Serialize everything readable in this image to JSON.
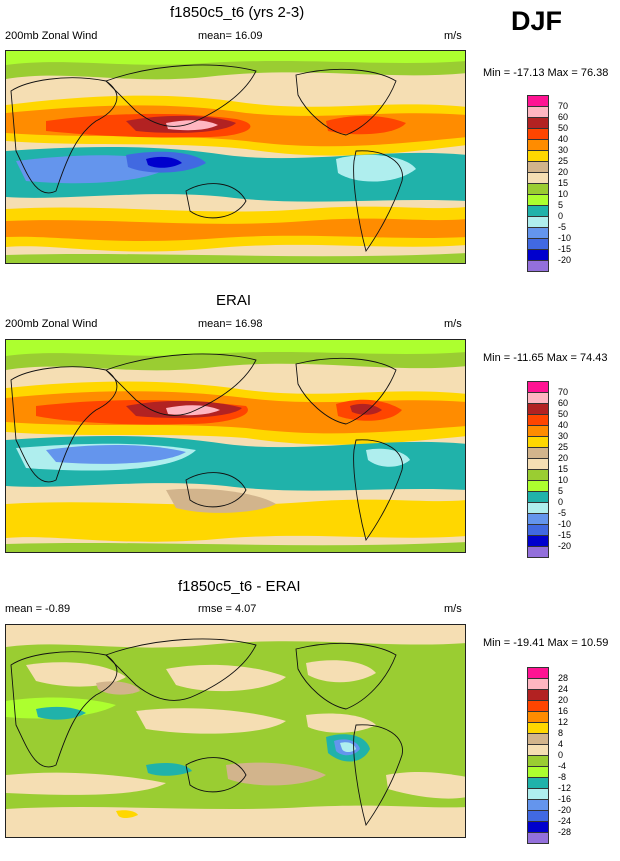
{
  "season": "DJF",
  "panels": [
    {
      "title": "f1850c5_t6 (yrs 2-3)",
      "left_label": "200mb Zonal Wind",
      "center_label": "mean=  16.09",
      "right_label": "m/s",
      "minmax": "Min = -17.13 Max =  76.38",
      "colorbar_labels": [
        "70",
        "60",
        "50",
        "40",
        "30",
        "25",
        "20",
        "15",
        "10",
        "5",
        "0",
        "-5",
        "-10",
        "-15",
        "-20"
      ]
    },
    {
      "title": "ERAI",
      "left_label": "200mb Zonal Wind",
      "center_label": "mean=  16.98",
      "right_label": "m/s",
      "minmax": "Min = -11.65 Max =  74.43",
      "colorbar_labels": [
        "70",
        "60",
        "50",
        "40",
        "30",
        "25",
        "20",
        "15",
        "10",
        "5",
        "0",
        "-5",
        "-10",
        "-15",
        "-20"
      ]
    },
    {
      "title": "f1850c5_t6 - ERAI",
      "left_label": "mean =  -0.89",
      "center_label": "rmse =   4.07",
      "right_label": "m/s",
      "minmax": "Min = -19.41 Max =  10.59",
      "colorbar_labels": [
        "28",
        "24",
        "20",
        "16",
        "12",
        "8",
        "4",
        "0",
        "-4",
        "-8",
        "-12",
        "-16",
        "-20",
        "-24",
        "-28"
      ]
    }
  ],
  "colors": {
    "wind_scale": [
      "#ff1493",
      "#ffb6c1",
      "#b22222",
      "#ff4500",
      "#ff8c00",
      "#ffd700",
      "#d2b48c",
      "#f5deb3",
      "#9acd32",
      "#adff2f",
      "#20b2aa",
      "#afeeee",
      "#6495ed",
      "#4169e1",
      "#0000cd",
      "#9370db"
    ],
    "diff_scale": [
      "#ff1493",
      "#ffb6c1",
      "#b22222",
      "#ff4500",
      "#ff8c00",
      "#ffd700",
      "#d2b48c",
      "#f5deb3",
      "#9acd32",
      "#adff2f",
      "#20b2aa",
      "#afeeee",
      "#6495ed",
      "#4169e1",
      "#0000cd",
      "#9370db"
    ]
  }
}
